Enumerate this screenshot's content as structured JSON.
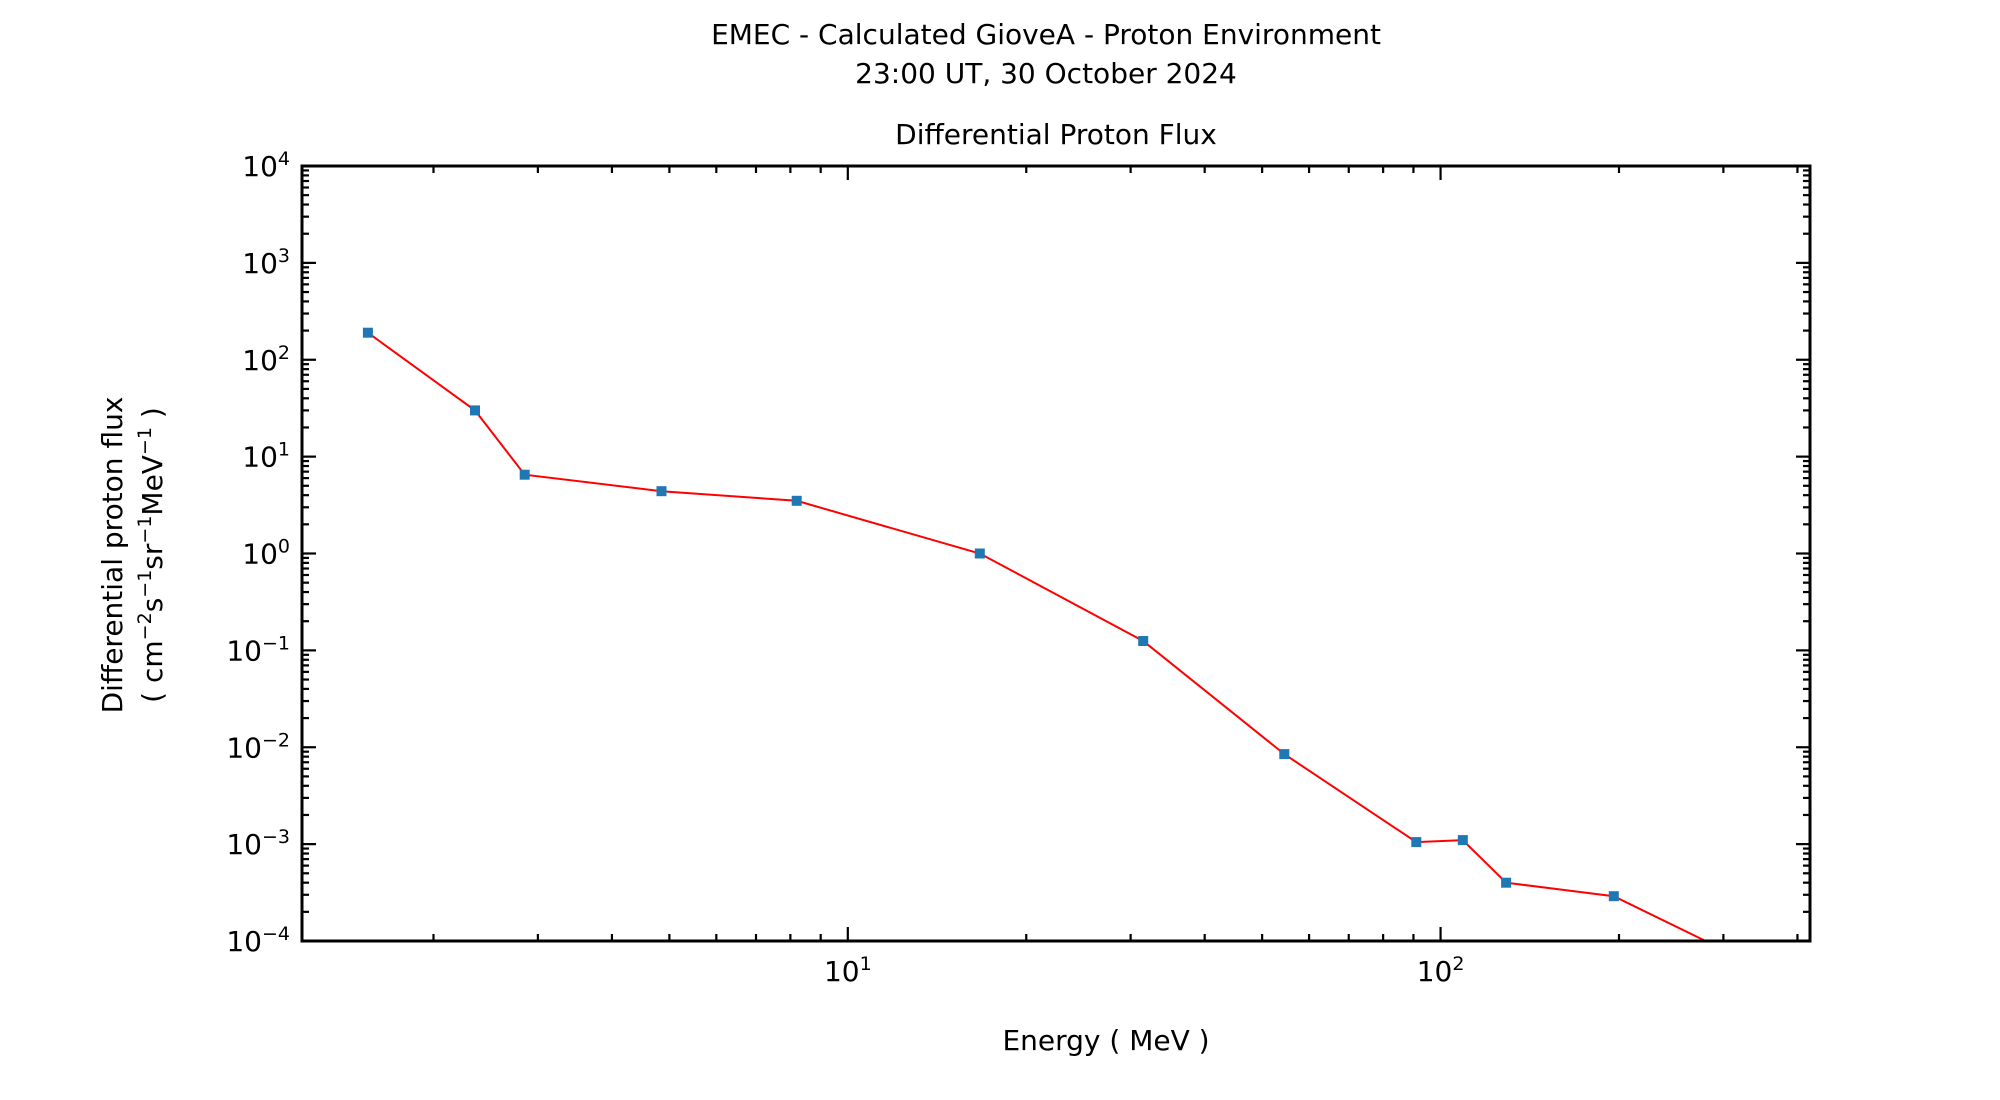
{
  "chart_data": {
    "type": "line",
    "title": "EMEC - Calculated GioveA - Proton Environment",
    "subtitle": "23:00 UT, 30 October 2024",
    "plot_title": "Differential Proton Flux",
    "xlabel": "Energy ( MeV )",
    "ylabel_line1": "Differential proton flux",
    "ylabel_line2_parts": [
      "( cm",
      "−2",
      "s",
      "−1",
      "sr",
      "−1",
      "MeV",
      "−1",
      " )"
    ],
    "x_scale": "log",
    "y_scale": "log",
    "xlim": [
      1.2,
      420
    ],
    "ylim": [
      0.0001,
      10000
    ],
    "x_tick_labels": [
      {
        "value": 10,
        "base": "10",
        "exp": "1"
      },
      {
        "value": 100,
        "base": "10",
        "exp": "2"
      }
    ],
    "y_tick_labels": [
      {
        "value": 10000,
        "base": "10",
        "exp": "4"
      },
      {
        "value": 1000,
        "base": "10",
        "exp": "3"
      },
      {
        "value": 100,
        "base": "10",
        "exp": "2"
      },
      {
        "value": 10,
        "base": "10",
        "exp": "1"
      },
      {
        "value": 1,
        "base": "10",
        "exp": "0"
      },
      {
        "value": 0.1,
        "base": "10",
        "exp": "−1"
      },
      {
        "value": 0.01,
        "base": "10",
        "exp": "−2"
      },
      {
        "value": 0.001,
        "base": "10",
        "exp": "−3"
      },
      {
        "value": 0.0001,
        "base": "10",
        "exp": "−4"
      }
    ],
    "grid": false,
    "series": [
      {
        "line_color": "#ff0000",
        "marker_color": "#1f77b4",
        "x": [
          1.55,
          2.35,
          2.85,
          4.85,
          8.2,
          16.7,
          31.5,
          54.5,
          91,
          109,
          129,
          196,
          280
        ],
        "y": [
          190,
          30,
          6.5,
          4.4,
          3.5,
          1.0,
          0.125,
          0.0085,
          0.00105,
          0.0011,
          0.0004,
          0.00029,
          0.0001
        ]
      }
    ]
  }
}
